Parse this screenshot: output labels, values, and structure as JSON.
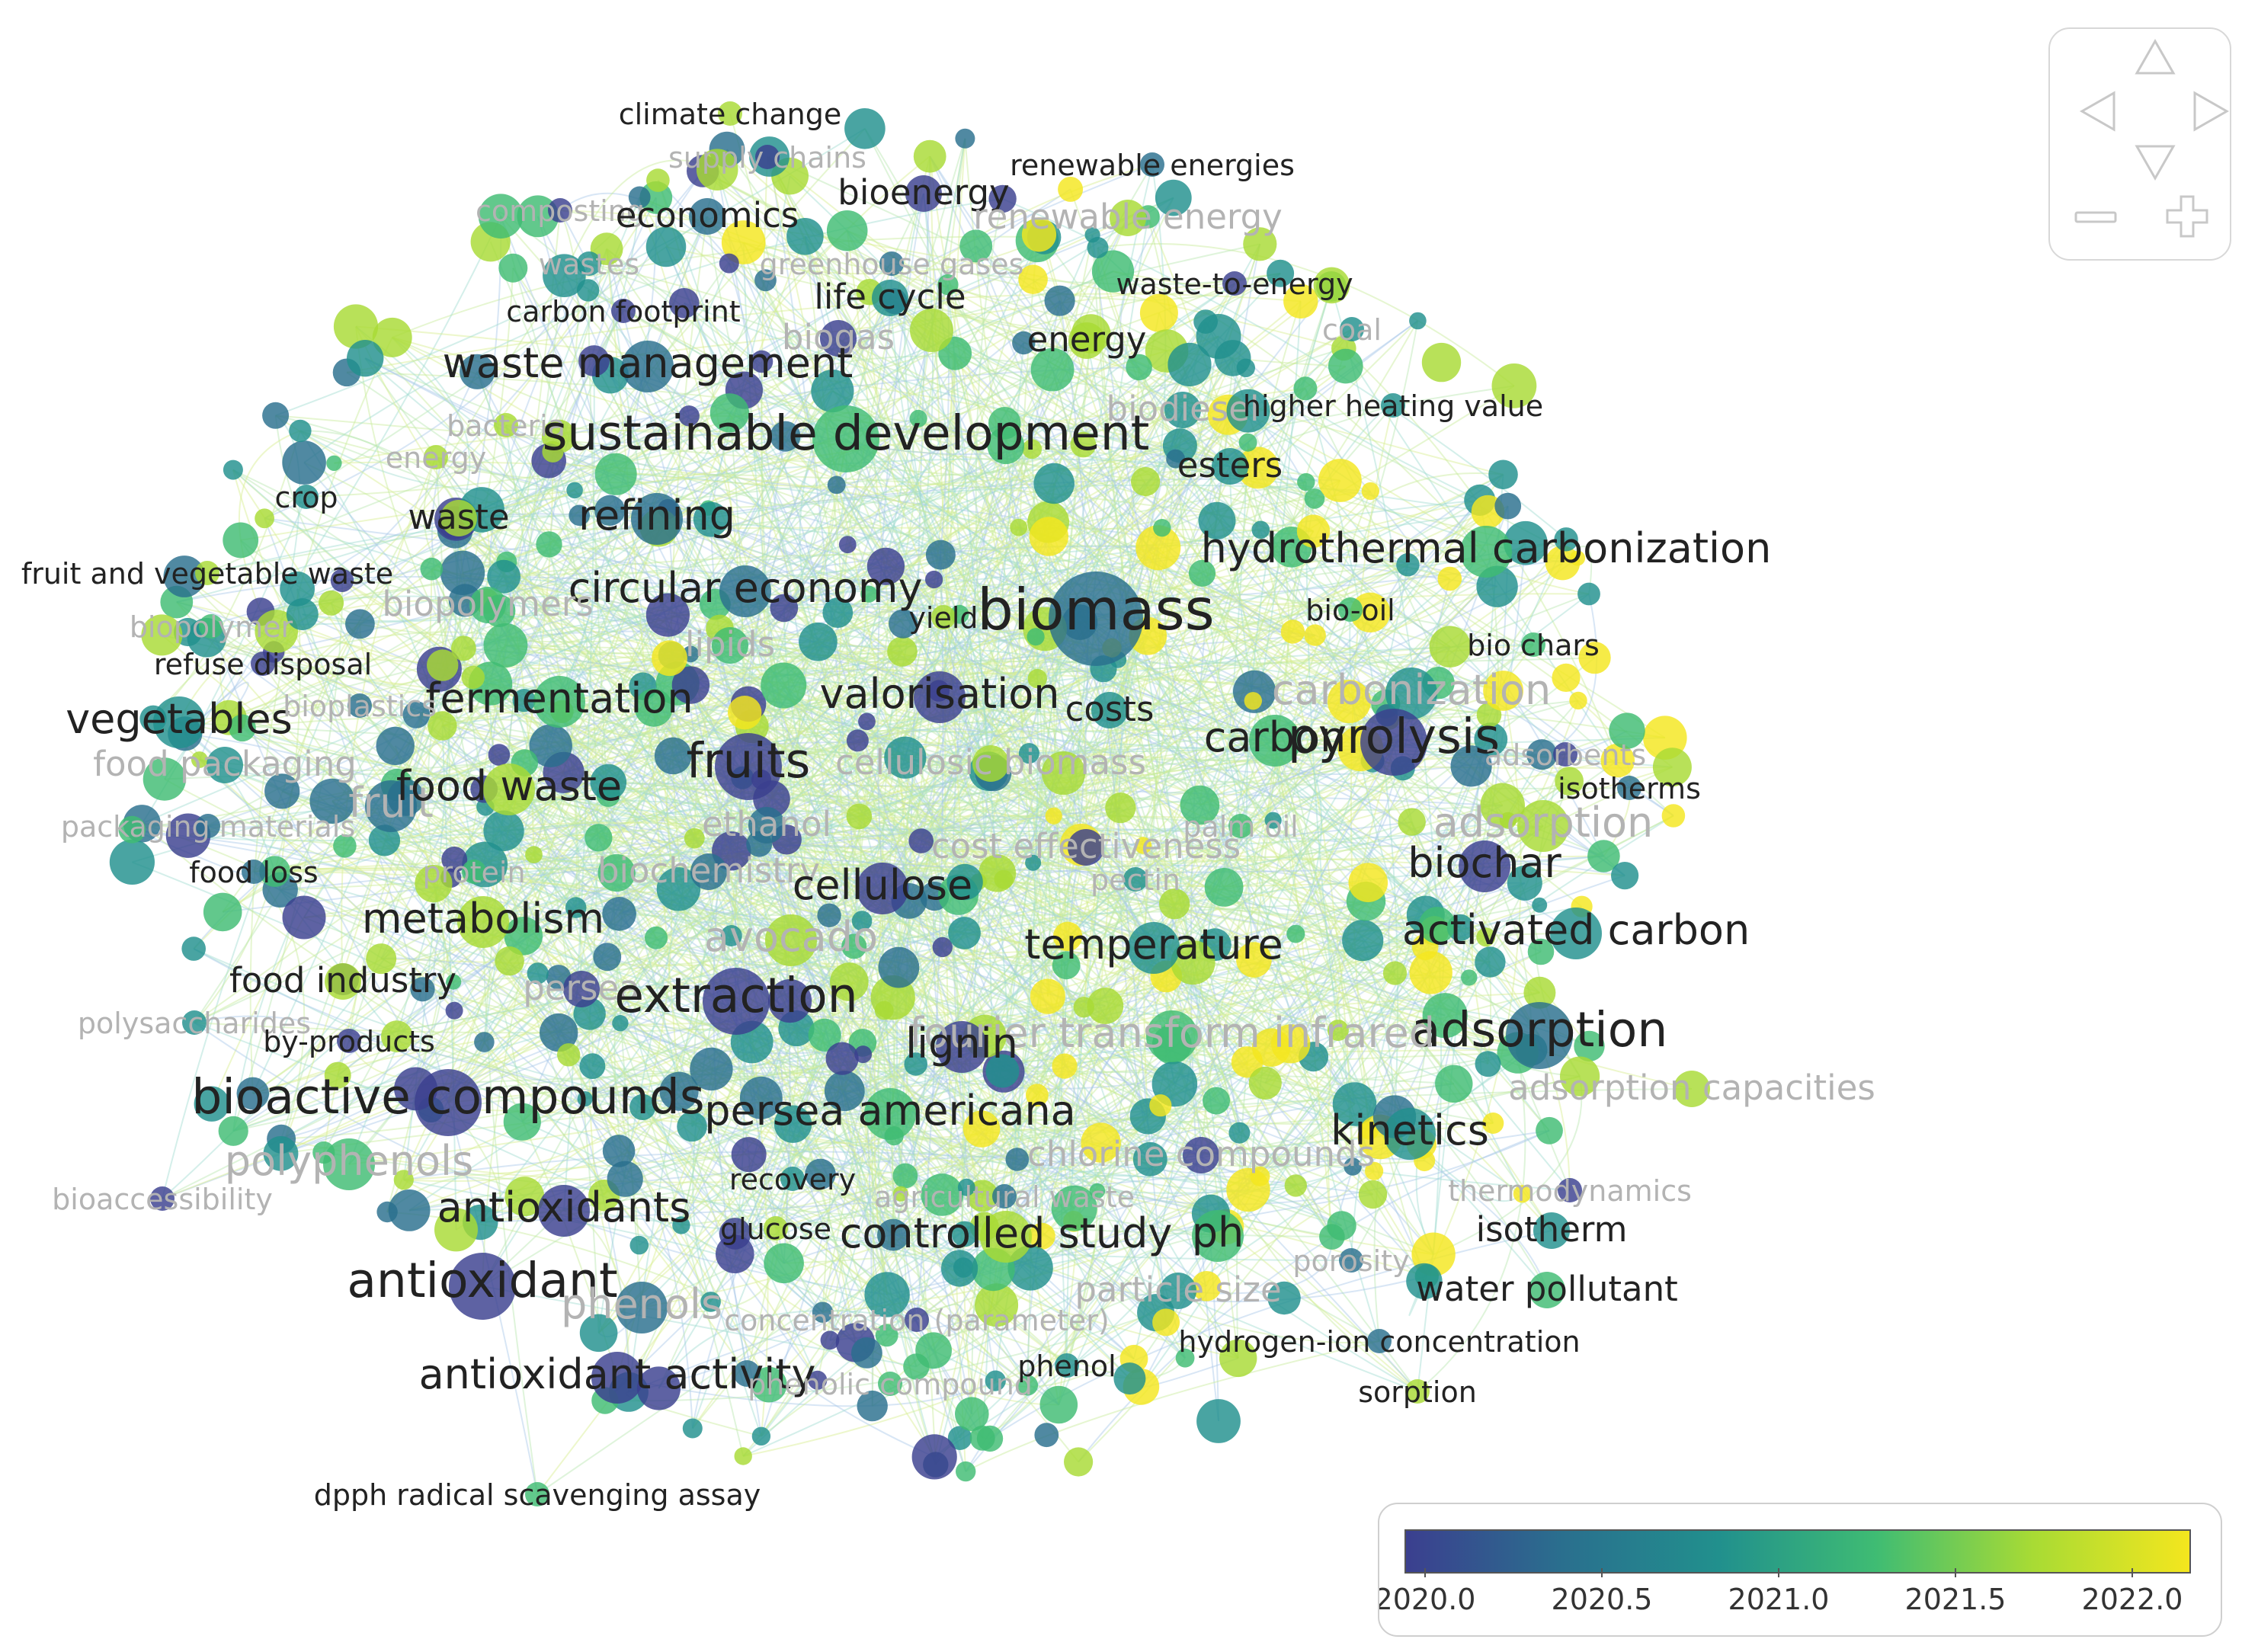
{
  "labels": [
    {
      "text": "climate change",
      "tone": "dark",
      "size": "s"
    },
    {
      "text": "supply chains",
      "tone": "faint",
      "size": "s"
    },
    {
      "text": "renewable energies",
      "tone": "dark",
      "size": "s"
    },
    {
      "text": "bioenergy",
      "tone": "dark",
      "size": "m"
    },
    {
      "text": "composting",
      "tone": "faint",
      "size": "s"
    },
    {
      "text": "economics",
      "tone": "dark",
      "size": "m"
    },
    {
      "text": "renewable energy",
      "tone": "faint",
      "size": "m"
    },
    {
      "text": "wastes",
      "tone": "faint",
      "size": "s"
    },
    {
      "text": "greenhouse gases",
      "tone": "faint",
      "size": "s"
    },
    {
      "text": "waste-to-energy",
      "tone": "dark",
      "size": "s"
    },
    {
      "text": "carbon footprint",
      "tone": "dark",
      "size": "s"
    },
    {
      "text": "life cycle",
      "tone": "dark",
      "size": "m"
    },
    {
      "text": "coal",
      "tone": "faint",
      "size": "s"
    },
    {
      "text": "biogas",
      "tone": "faint",
      "size": "m"
    },
    {
      "text": "energy",
      "tone": "dark",
      "size": "m"
    },
    {
      "text": "waste management",
      "tone": "dark",
      "size": "l"
    },
    {
      "text": "biodiesel",
      "tone": "faint",
      "size": "m"
    },
    {
      "text": "higher heating value",
      "tone": "dark",
      "size": "s"
    },
    {
      "text": "bacteria",
      "tone": "faint",
      "size": "s"
    },
    {
      "text": "sustainable development",
      "tone": "dark",
      "size": "xl"
    },
    {
      "text": "esters",
      "tone": "dark",
      "size": "m"
    },
    {
      "text": "energy",
      "tone": "faint",
      "size": "s"
    },
    {
      "text": "crop",
      "tone": "dark",
      "size": "s"
    },
    {
      "text": "waste",
      "tone": "dark",
      "size": "m"
    },
    {
      "text": "refining",
      "tone": "dark",
      "size": "l"
    },
    {
      "text": "hydrothermal carbonization",
      "tone": "dark",
      "size": "l"
    },
    {
      "text": "fruit and vegetable waste",
      "tone": "dark",
      "size": "s"
    },
    {
      "text": "circular economy",
      "tone": "dark",
      "size": "l"
    },
    {
      "text": "biopolymer",
      "tone": "faint",
      "size": "s"
    },
    {
      "text": "biopolymers",
      "tone": "faint",
      "size": "m"
    },
    {
      "text": "yield",
      "tone": "dark",
      "size": "s"
    },
    {
      "text": "biomass",
      "tone": "dark",
      "size": "xxl"
    },
    {
      "text": "bio-oil",
      "tone": "dark",
      "size": "s"
    },
    {
      "text": "lipids",
      "tone": "faint",
      "size": "m"
    },
    {
      "text": "refuse disposal",
      "tone": "dark",
      "size": "s"
    },
    {
      "text": "bio chars",
      "tone": "dark",
      "size": "s"
    },
    {
      "text": "fermentation",
      "tone": "dark",
      "size": "l"
    },
    {
      "text": "valorisation",
      "tone": "dark",
      "size": "l"
    },
    {
      "text": "costs",
      "tone": "dark",
      "size": "m"
    },
    {
      "text": "carbonization",
      "tone": "faint",
      "size": "l"
    },
    {
      "text": "vegetables",
      "tone": "dark",
      "size": "l"
    },
    {
      "text": "bioplastics",
      "tone": "faint",
      "size": "s"
    },
    {
      "text": "fruits",
      "tone": "dark",
      "size": "xl"
    },
    {
      "text": "cellulosic biomass",
      "tone": "faint",
      "size": "m"
    },
    {
      "text": "carbon",
      "tone": "dark",
      "size": "l"
    },
    {
      "text": "pyrolysis",
      "tone": "dark",
      "size": "xl"
    },
    {
      "text": "adsorbents",
      "tone": "faint",
      "size": "s"
    },
    {
      "text": "food packaging",
      "tone": "faint",
      "size": "m"
    },
    {
      "text": "isotherms",
      "tone": "dark",
      "size": "s"
    },
    {
      "text": "fruit",
      "tone": "faint",
      "size": "l"
    },
    {
      "text": "food waste",
      "tone": "dark",
      "size": "l"
    },
    {
      "text": "ethanol",
      "tone": "faint",
      "size": "m"
    },
    {
      "text": "palm oil",
      "tone": "faint",
      "size": "s"
    },
    {
      "text": "adsorption",
      "tone": "faint",
      "size": "l"
    },
    {
      "text": "packaging materials",
      "tone": "faint",
      "size": "s"
    },
    {
      "text": "cost effectiveness",
      "tone": "faint",
      "size": "m"
    },
    {
      "text": "food loss",
      "tone": "dark",
      "size": "s"
    },
    {
      "text": "protein",
      "tone": "faint",
      "size": "s"
    },
    {
      "text": "biochemistry",
      "tone": "faint",
      "size": "m"
    },
    {
      "text": "cellulose",
      "tone": "dark",
      "size": "l"
    },
    {
      "text": "biochar",
      "tone": "dark",
      "size": "l"
    },
    {
      "text": "pectin",
      "tone": "faint",
      "size": "s"
    },
    {
      "text": "metabolism",
      "tone": "dark",
      "size": "l"
    },
    {
      "text": "avocado",
      "tone": "faint",
      "size": "l"
    },
    {
      "text": "activated carbon",
      "tone": "dark",
      "size": "l"
    },
    {
      "text": "temperature",
      "tone": "dark",
      "size": "l"
    },
    {
      "text": "food industry",
      "tone": "dark",
      "size": "m"
    },
    {
      "text": "persea",
      "tone": "faint",
      "size": "m"
    },
    {
      "text": "polysaccharides",
      "tone": "faint",
      "size": "s"
    },
    {
      "text": "extraction",
      "tone": "dark",
      "size": "xl"
    },
    {
      "text": "adsorption",
      "tone": "dark",
      "size": "xl"
    },
    {
      "text": "by-products",
      "tone": "dark",
      "size": "s"
    },
    {
      "text": "fourier transform infrared",
      "tone": "faint",
      "size": "l"
    },
    {
      "text": "lignin",
      "tone": "dark",
      "size": "l"
    },
    {
      "text": "bioactive compounds",
      "tone": "dark",
      "size": "xl"
    },
    {
      "text": "adsorption capacities",
      "tone": "faint",
      "size": "m"
    },
    {
      "text": "persea americana",
      "tone": "dark",
      "size": "l"
    },
    {
      "text": "kinetics",
      "tone": "dark",
      "size": "l"
    },
    {
      "text": "polyphenols",
      "tone": "faint",
      "size": "l"
    },
    {
      "text": "chlorine compounds",
      "tone": "faint",
      "size": "m"
    },
    {
      "text": "recovery",
      "tone": "dark",
      "size": "s"
    },
    {
      "text": "thermodynamics",
      "tone": "faint",
      "size": "s"
    },
    {
      "text": "bioaccessibility",
      "tone": "faint",
      "size": "s"
    },
    {
      "text": "agricultural waste",
      "tone": "faint",
      "size": "s"
    },
    {
      "text": "antioxidants",
      "tone": "dark",
      "size": "l"
    },
    {
      "text": "glucose",
      "tone": "dark",
      "size": "s"
    },
    {
      "text": "controlled study",
      "tone": "dark",
      "size": "l"
    },
    {
      "text": "ph",
      "tone": "dark",
      "size": "l"
    },
    {
      "text": "isotherm",
      "tone": "dark",
      "size": "m"
    },
    {
      "text": "porosity",
      "tone": "faint",
      "size": "s"
    },
    {
      "text": "antioxidant",
      "tone": "dark",
      "size": "xl"
    },
    {
      "text": "phenols",
      "tone": "faint",
      "size": "l"
    },
    {
      "text": "particle size",
      "tone": "faint",
      "size": "m"
    },
    {
      "text": "water pollutant",
      "tone": "dark",
      "size": "m"
    },
    {
      "text": "concentration (parameter)",
      "tone": "faint",
      "size": "s"
    },
    {
      "text": "hydrogen-ion concentration",
      "tone": "dark",
      "size": "s"
    },
    {
      "text": "antioxidant activity",
      "tone": "dark",
      "size": "l"
    },
    {
      "text": "phenolic compound",
      "tone": "faint",
      "size": "s"
    },
    {
      "text": "phenol",
      "tone": "dark",
      "size": "s"
    },
    {
      "text": "sorption",
      "tone": "dark",
      "size": "s"
    },
    {
      "text": "dpph radical scavenging assay",
      "tone": "dark",
      "size": "s"
    }
  ],
  "colorbar": {
    "ticks": [
      "2020.0",
      "2020.5",
      "2021.0",
      "2021.5",
      "2022.0"
    ],
    "colors": [
      "#3b3f8f",
      "#2a6f8e",
      "#21908d",
      "#3fbc73",
      "#a8db34",
      "#f4e61e"
    ]
  },
  "controls": {
    "up": "arrow-up-icon",
    "down": "arrow-down-icon",
    "left": "arrow-left-icon",
    "right": "arrow-right-icon",
    "zoom_out": "zoom-out-icon",
    "zoom_in": "zoom-in-icon"
  }
}
